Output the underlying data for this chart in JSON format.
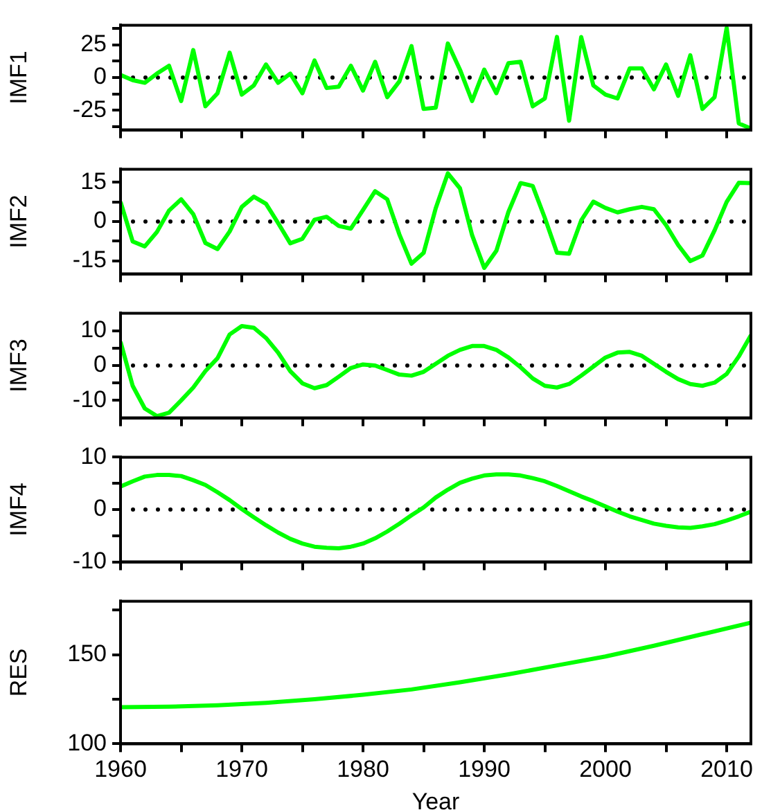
{
  "chart_data": [
    {
      "type": "line",
      "ylabel": "IMF1",
      "tick_labels": "y",
      "x": [
        1960,
        1961,
        1962,
        1963,
        1964,
        1965,
        1966,
        1967,
        1968,
        1969,
        1970,
        1971,
        1972,
        1973,
        1974,
        1975,
        1976,
        1977,
        1978,
        1979,
        1980,
        1981,
        1982,
        1983,
        1984,
        1985,
        1986,
        1987,
        1988,
        1989,
        1990,
        1991,
        1992,
        1993,
        1994,
        1995,
        1996,
        1997,
        1998,
        1999,
        2000,
        2001,
        2002,
        2003,
        2004,
        2005,
        2006,
        2007,
        2008,
        2009,
        2010,
        2011,
        2012
      ],
      "series": [
        {
          "color": "#00ff00",
          "values": [
            2,
            -2,
            -4,
            3,
            9,
            -18,
            21,
            -22,
            -12,
            19,
            -13,
            -6,
            10,
            -4,
            3,
            -12,
            13,
            -8,
            -7,
            9,
            -10,
            12,
            -15,
            -3,
            24,
            -24,
            -23,
            26,
            6,
            -18,
            6,
            -12,
            11,
            12,
            -22,
            -16,
            31,
            -33,
            31,
            -6,
            -13,
            -16,
            7,
            7,
            -9,
            10,
            -14,
            17,
            -24,
            -15,
            38,
            -35,
            -39
          ]
        }
      ],
      "xlim": [
        1960,
        2012
      ],
      "xticks": [
        1960,
        {
          "value": 1965,
          "label": null
        },
        1970,
        {
          "value": 1975,
          "label": null
        },
        1980,
        {
          "value": 1985,
          "label": null
        },
        1990,
        {
          "value": 1995,
          "label": null
        },
        2000,
        {
          "value": 2005,
          "label": null
        },
        2010
      ],
      "ylim": [
        -40,
        40
      ],
      "yticks": [
        {
          "value": -37.5,
          "label": null
        },
        -25,
        {
          "value": -12.5,
          "label": null
        },
        0,
        {
          "value": 12.5,
          "label": null
        },
        25,
        {
          "value": 37.5,
          "label": null
        }
      ],
      "ref_lines": [
        {
          "axis": "y",
          "value": 0,
          "line_style": "dotted",
          "color": "#000000"
        }
      ]
    },
    {
      "type": "line",
      "ylabel": "IMF2",
      "tick_labels": "y",
      "x": [
        1960,
        1961,
        1962,
        1963,
        1964,
        1965,
        1966,
        1967,
        1968,
        1969,
        1970,
        1971,
        1972,
        1973,
        1974,
        1975,
        1976,
        1977,
        1978,
        1979,
        1980,
        1981,
        1982,
        1983,
        1984,
        1985,
        1986,
        1987,
        1988,
        1989,
        1990,
        1991,
        1992,
        1993,
        1994,
        1995,
        1996,
        1997,
        1998,
        1999,
        2000,
        2001,
        2002,
        2003,
        2004,
        2005,
        2006,
        2007,
        2008,
        2009,
        2010,
        2011,
        2012
      ],
      "series": [
        {
          "color": "#00ff00",
          "values": [
            7.5,
            -7.6,
            -9.5,
            -4,
            4.2,
            8.5,
            2.8,
            -8.2,
            -10.5,
            -3.8,
            5.6,
            9.5,
            6.8,
            -0.6,
            -8.3,
            -6.6,
            0.7,
            1.8,
            -1.7,
            -2.7,
            4.4,
            11.6,
            8.5,
            -4.9,
            -16.1,
            -12,
            5.1,
            18.4,
            12.7,
            -5.2,
            -17.7,
            -11.2,
            3.7,
            14.7,
            13.6,
            1.4,
            -11.9,
            -12.3,
            0.4,
            7.6,
            5.2,
            3.5,
            4.7,
            5.6,
            4.7,
            -1.4,
            -9,
            -15.1,
            -13,
            -3.4,
            7.5,
            14.8,
            14.7
          ]
        }
      ],
      "xlim": [
        1960,
        2012
      ],
      "xticks": [
        1960,
        {
          "value": 1965,
          "label": null
        },
        1970,
        {
          "value": 1975,
          "label": null
        },
        1980,
        {
          "value": 1985,
          "label": null
        },
        1990,
        {
          "value": 1995,
          "label": null
        },
        2000,
        {
          "value": 2005,
          "label": null
        },
        2010
      ],
      "ylim": [
        -20,
        20
      ],
      "yticks": [
        -15,
        {
          "value": -7.5,
          "label": null
        },
        0,
        {
          "value": 7.5,
          "label": null
        },
        15
      ],
      "ref_lines": [
        {
          "axis": "y",
          "value": 0,
          "line_style": "dotted",
          "color": "#000000"
        }
      ]
    },
    {
      "type": "line",
      "ylabel": "IMF3",
      "tick_labels": "y",
      "x": [
        1960,
        1961,
        1962,
        1963,
        1964,
        1965,
        1966,
        1967,
        1968,
        1969,
        1970,
        1971,
        1972,
        1973,
        1974,
        1975,
        1976,
        1977,
        1978,
        1979,
        1980,
        1981,
        1982,
        1983,
        1984,
        1985,
        1986,
        1987,
        1988,
        1989,
        1990,
        1991,
        1992,
        1993,
        1994,
        1995,
        1996,
        1997,
        1998,
        1999,
        2000,
        2001,
        2002,
        2003,
        2004,
        2005,
        2006,
        2007,
        2008,
        2009,
        2010,
        2011,
        2012
      ],
      "series": [
        {
          "color": "#00ff00",
          "values": [
            6.8,
            -5.8,
            -12.3,
            -14.5,
            -13.5,
            -10,
            -6.3,
            -1.6,
            2.1,
            8.9,
            11.3,
            10.8,
            7.9,
            3.7,
            -1.6,
            -5.1,
            -6.5,
            -5.6,
            -3.2,
            -0.7,
            0.3,
            0,
            -1.3,
            -2.6,
            -2.9,
            -1.8,
            0.5,
            2.8,
            4.5,
            5.6,
            5.6,
            4.5,
            2.3,
            -0.5,
            -3.7,
            -5.8,
            -6.3,
            -5.3,
            -2.9,
            -0.3,
            2.3,
            3.7,
            3.9,
            2.8,
            0.5,
            -1.8,
            -3.9,
            -5.3,
            -5.8,
            -4.9,
            -2.4,
            2.6,
            8.7
          ]
        }
      ],
      "xlim": [
        1960,
        2012
      ],
      "xticks": [
        1960,
        {
          "value": 1965,
          "label": null
        },
        1970,
        {
          "value": 1975,
          "label": null
        },
        1980,
        {
          "value": 1985,
          "label": null
        },
        1990,
        {
          "value": 1995,
          "label": null
        },
        2000,
        {
          "value": 2005,
          "label": null
        },
        2010
      ],
      "ylim": [
        -15,
        15
      ],
      "yticks": [
        -10,
        {
          "value": -5,
          "label": null
        },
        0,
        {
          "value": 5,
          "label": null
        },
        10
      ],
      "ref_lines": [
        {
          "axis": "y",
          "value": 0,
          "line_style": "dotted",
          "color": "#000000"
        }
      ]
    },
    {
      "type": "line",
      "ylabel": "IMF4",
      "tick_labels": "y",
      "x": [
        1960,
        1961,
        1962,
        1963,
        1964,
        1965,
        1966,
        1967,
        1968,
        1969,
        1970,
        1971,
        1972,
        1973,
        1974,
        1975,
        1976,
        1977,
        1978,
        1979,
        1980,
        1981,
        1982,
        1983,
        1984,
        1985,
        1986,
        1987,
        1988,
        1989,
        1990,
        1991,
        1992,
        1993,
        1994,
        1995,
        1996,
        1997,
        1998,
        1999,
        2000,
        2001,
        2002,
        2003,
        2004,
        2005,
        2006,
        2007,
        2008,
        2009,
        2010,
        2011,
        2012
      ],
      "series": [
        {
          "color": "#00ff00",
          "values": [
            4.4,
            5.4,
            6.3,
            6.6,
            6.6,
            6.4,
            5.6,
            4.7,
            3.3,
            1.8,
            0.1,
            -1.5,
            -3,
            -4.4,
            -5.6,
            -6.5,
            -7.1,
            -7.3,
            -7.4,
            -7.1,
            -6.5,
            -5.5,
            -4.2,
            -2.7,
            -1.1,
            0.4,
            2.3,
            3.8,
            5.1,
            5.9,
            6.5,
            6.7,
            6.7,
            6.5,
            6,
            5.4,
            4.5,
            3.5,
            2.5,
            1.6,
            0.6,
            -0.4,
            -1.3,
            -2,
            -2.7,
            -3.1,
            -3.4,
            -3.5,
            -3.2,
            -2.8,
            -2.1,
            -1.3,
            -0.4
          ]
        }
      ],
      "xlim": [
        1960,
        2012
      ],
      "xticks": [
        1960,
        {
          "value": 1965,
          "label": null
        },
        1970,
        {
          "value": 1975,
          "label": null
        },
        1980,
        {
          "value": 1985,
          "label": null
        },
        1990,
        {
          "value": 1995,
          "label": null
        },
        2000,
        {
          "value": 2005,
          "label": null
        },
        2010
      ],
      "ylim": [
        -10,
        10
      ],
      "yticks": [
        -10,
        {
          "value": -5,
          "label": null
        },
        0,
        {
          "value": 5,
          "label": null
        },
        10
      ],
      "ref_lines": [
        {
          "axis": "y",
          "value": 0,
          "line_style": "dotted",
          "color": "#000000"
        }
      ]
    },
    {
      "type": "line",
      "ylabel": "RES",
      "xlabel": "Year",
      "series": [
        {
          "color": "#00ff00",
          "x": [
            1960,
            1964,
            1968,
            1972,
            1976,
            1980,
            1984,
            1988,
            1992,
            1996,
            2000,
            2004,
            2008,
            2012
          ],
          "values": [
            120.5,
            120.8,
            121.6,
            123,
            125,
            127.5,
            130.5,
            134.5,
            139,
            144,
            149,
            155,
            161.5,
            168
          ]
        }
      ],
      "xlim": [
        1960,
        2012
      ],
      "xticks": [
        1960,
        {
          "value": 1965,
          "label": null
        },
        1970,
        {
          "value": 1975,
          "label": null
        },
        1980,
        {
          "value": 1985,
          "label": null
        },
        1990,
        {
          "value": 1995,
          "label": null
        },
        2000,
        {
          "value": 2005,
          "label": null
        },
        2010
      ],
      "ylim": [
        100,
        180
      ],
      "yticks": [
        100,
        {
          "value": 125,
          "label": null
        },
        150,
        {
          "value": 175,
          "label": null
        }
      ]
    }
  ]
}
